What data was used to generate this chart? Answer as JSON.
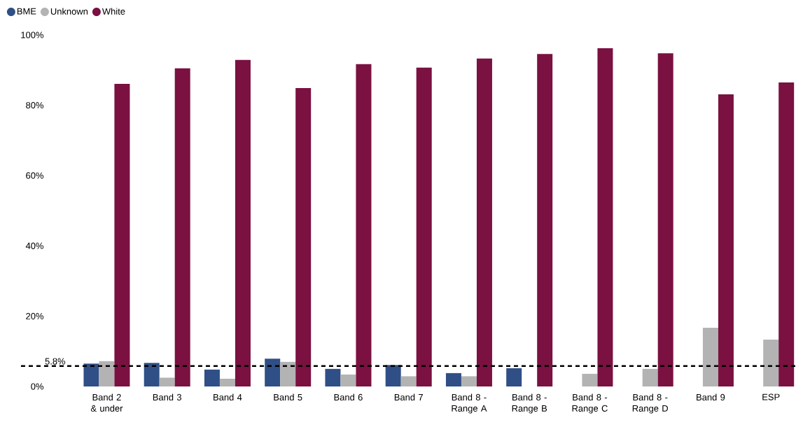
{
  "chart_data": {
    "type": "bar",
    "categories": [
      "Band 2 & under",
      "Band 3",
      "Band 4",
      "Band 5",
      "Band 6",
      "Band 7",
      "Band 8 - Range A",
      "Band 8 - Range B",
      "Band 8 - Range C",
      "Band 8 - Range D",
      "Band 9",
      "ESP"
    ],
    "series": [
      {
        "name": "BME",
        "color": "#2f4f86",
        "values": [
          6.5,
          6.7,
          4.8,
          7.9,
          5.0,
          6.1,
          3.8,
          5.2,
          0,
          0,
          0,
          0
        ]
      },
      {
        "name": "Unknown",
        "color": "#b3b3b3",
        "values": [
          7.2,
          2.5,
          2.2,
          7.0,
          3.4,
          2.9,
          2.9,
          0,
          3.6,
          5.0,
          16.7,
          13.3
        ]
      },
      {
        "name": "White",
        "color": "#7a1140",
        "values": [
          86.1,
          90.5,
          92.9,
          84.9,
          91.7,
          90.7,
          93.3,
          94.6,
          96.2,
          94.8,
          83.1,
          86.5
        ]
      }
    ],
    "ylim": [
      0,
      100
    ],
    "yticks": [
      {
        "value": 0,
        "label": "0%"
      },
      {
        "value": 20,
        "label": "20%"
      },
      {
        "value": 40,
        "label": "40%"
      },
      {
        "value": 60,
        "label": "60%"
      },
      {
        "value": 80,
        "label": "80%"
      },
      {
        "value": 100,
        "label": "100%"
      }
    ],
    "ref_lines": [
      {
        "axis": "y",
        "value": 5.8,
        "label": "5.8%",
        "color": "#000000",
        "line_style": "dashed"
      }
    ],
    "legend": "top left",
    "grid": false,
    "marker": "circle"
  }
}
